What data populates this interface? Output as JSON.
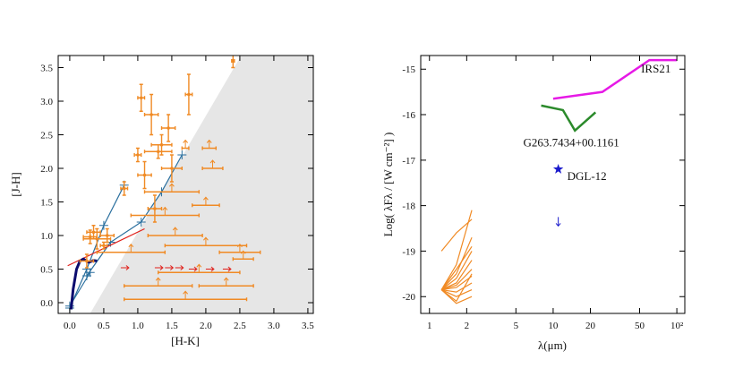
{
  "chart_data": [
    {
      "type": "scatter",
      "xlabel": "[H-K]",
      "ylabel": "[J-H]",
      "xlim": [
        -0.17,
        3.58
      ],
      "ylim": [
        -0.16,
        3.68
      ],
      "xticks": [
        {
          "value": 0,
          "label": "0.0"
        },
        0.5,
        {
          "value": 1,
          "label": "1.0"
        },
        1.5,
        {
          "value": 2,
          "label": "2.0"
        },
        2.5,
        {
          "value": 3,
          "label": "3.0"
        },
        3.5
      ],
      "yticks": [
        {
          "value": 0,
          "label": "0.0"
        },
        0.5,
        {
          "value": 1,
          "label": "1.0"
        },
        1.5,
        {
          "value": 2,
          "label": "2.0"
        },
        2.5,
        {
          "value": 3,
          "label": "3.0"
        },
        3.5
      ],
      "series": [
        {
          "type": "region",
          "color": "#e6e6e6",
          "x": [
            0.3,
            2.52
          ],
          "values": [
            -0.16,
            3.68
          ]
        },
        {
          "type": "line",
          "marker": "plus",
          "color": "#2a6f9e",
          "x": [
            0.0,
            0.25,
            0.5,
            0.8
          ],
          "values": [
            -0.08,
            0.5,
            1.15,
            1.75
          ]
        },
        {
          "type": "line",
          "marker": "plus",
          "color": "#2a6f9e",
          "x": [
            0.25,
            0.6,
            1.05,
            1.35,
            1.65
          ],
          "values": [
            0.4,
            0.9,
            1.2,
            1.65,
            2.2
          ]
        },
        {
          "type": "line",
          "marker": "plus",
          "color": "#2a6f9e",
          "x": [
            0.0,
            0.3
          ],
          "values": [
            -0.05,
            0.45
          ]
        },
        {
          "type": "line",
          "color": "#e0201b",
          "x": [
            -0.03,
            1.1
          ],
          "values": [
            0.55,
            1.1
          ]
        },
        {
          "type": "line",
          "width": 3,
          "color": "#0b0b6e",
          "x": [
            0.02,
            0.05,
            0.1,
            0.15,
            0.2,
            0.28,
            0.35,
            0.4
          ],
          "values": [
            -0.1,
            0.2,
            0.5,
            0.62,
            0.65,
            0.6,
            0.63,
            0.62
          ]
        },
        {
          "type": "errorbar",
          "color": "#f08a24",
          "x": [
            2.4,
            1.05,
            1.2,
            1.75,
            1.45,
            1.35,
            1.5,
            1.0,
            1.3,
            0.8,
            0.35,
            0.4,
            0.3,
            0.5,
            0.25,
            0.55,
            1.1,
            1.25
          ],
          "values": [
            3.6,
            3.05,
            2.8,
            3.1,
            2.6,
            2.35,
            2.0,
            2.2,
            2.25,
            1.7,
            1.05,
            0.95,
            0.98,
            0.85,
            0.62,
            1.0,
            1.9,
            1.4
          ],
          "xerr": [
            0.02,
            0.05,
            0.1,
            0.05,
            0.1,
            0.15,
            0.15,
            0.05,
            0.2,
            0.05,
            0.1,
            0.2,
            0.1,
            0.05,
            0.1,
            0.1,
            0.1,
            0.1
          ],
          "yerr": [
            0.1,
            0.2,
            0.3,
            0.3,
            0.2,
            0.15,
            0.2,
            0.1,
            0.1,
            0.1,
            0.1,
            0.15,
            0.1,
            0.05,
            0.1,
            0.1,
            0.2,
            0.2
          ]
        },
        {
          "type": "upper_limit",
          "color": "#f08a24",
          "x": [
            1.7,
            2.05,
            2.1,
            1.5,
            2.0,
            1.4,
            1.55,
            2.0,
            0.9,
            2.5,
            1.9,
            1.3,
            2.3,
            1.7,
            2.55
          ],
          "values": [
            2.3,
            2.3,
            2.0,
            1.65,
            1.45,
            1.3,
            1.0,
            0.85,
            0.75,
            0.75,
            0.45,
            0.25,
            0.25,
            0.05,
            0.65
          ],
          "xerr": [
            0.05,
            0.1,
            0.15,
            0.4,
            0.2,
            0.5,
            0.4,
            0.6,
            0.5,
            0.3,
            0.6,
            0.5,
            0.4,
            0.9,
            0.15
          ]
        },
        {
          "type": "x_lower_limit",
          "color": "#e0201b",
          "x": [
            0.75,
            1.25,
            1.4,
            1.55,
            1.75,
            2.0,
            2.25
          ],
          "values": [
            0.52,
            0.52,
            0.52,
            0.52,
            0.5,
            0.5,
            0.5
          ]
        }
      ]
    },
    {
      "type": "line",
      "xscale": "log",
      "xlabel": "λ(μm)",
      "ylabel": "Log( λFλ / [W cm⁻²] )",
      "xlim": [
        0.85,
        116
      ],
      "ylim": [
        -20.37,
        -14.7
      ],
      "xticks": [
        1,
        2,
        5,
        10,
        20,
        50,
        {
          "value": 100,
          "label": "10²"
        }
      ],
      "yticks": [
        -15,
        -16,
        -17,
        -18,
        -19,
        -20
      ],
      "series": [
        {
          "name": "IRS21",
          "color": "#e619e6",
          "width": 2.5,
          "x": [
            10,
            25,
            60,
            100
          ],
          "values": [
            -15.65,
            -15.5,
            -14.8,
            -14.8
          ]
        },
        {
          "name": "G263.7434+00.1161",
          "color": "#2b8a2b",
          "width": 2.5,
          "x": [
            8,
            12,
            15,
            22
          ],
          "values": [
            -15.8,
            -15.9,
            -16.35,
            -15.95
          ]
        },
        {
          "name": "DGL-12",
          "type": "star",
          "color": "#1a1acc",
          "x": [
            11
          ],
          "values": [
            -17.2
          ]
        },
        {
          "type": "upper_limit",
          "color": "#1a1acc",
          "x": [
            11
          ],
          "values": [
            -18.35
          ]
        },
        {
          "color": "#f08a24",
          "x": [
            1.25,
            1.65,
            2.2
          ],
          "values": [
            -19.85,
            -19.3,
            -18.1
          ]
        },
        {
          "color": "#f08a24",
          "x": [
            1.25,
            1.65,
            2.2
          ],
          "values": [
            -19.85,
            -19.5,
            -18.7
          ]
        },
        {
          "color": "#f08a24",
          "x": [
            1.25,
            1.65,
            2.2
          ],
          "values": [
            -19.85,
            -19.6,
            -19.0
          ]
        },
        {
          "color": "#f08a24",
          "x": [
            1.25,
            1.65,
            2.2
          ],
          "values": [
            -19.85,
            -19.7,
            -19.2
          ]
        },
        {
          "color": "#f08a24",
          "x": [
            1.25,
            1.65,
            2.2
          ],
          "values": [
            -19.85,
            -19.75,
            -19.4
          ]
        },
        {
          "color": "#f08a24",
          "x": [
            1.25,
            1.65,
            2.2
          ],
          "values": [
            -19.85,
            -19.8,
            -19.55
          ]
        },
        {
          "color": "#f08a24",
          "x": [
            1.25,
            1.65,
            2.2
          ],
          "values": [
            -19.85,
            -19.9,
            -19.7
          ]
        },
        {
          "color": "#f08a24",
          "x": [
            1.25,
            1.65,
            2.2
          ],
          "values": [
            -19.85,
            -20.0,
            -19.85
          ]
        },
        {
          "color": "#f08a24",
          "x": [
            1.25,
            1.65,
            2.2
          ],
          "values": [
            -19.85,
            -20.1,
            -19.5
          ]
        },
        {
          "color": "#f08a24",
          "x": [
            1.25,
            1.65,
            2.2
          ],
          "values": [
            -19.85,
            -19.4,
            -18.9
          ]
        },
        {
          "color": "#f08a24",
          "x": [
            1.25,
            1.65,
            2.2
          ],
          "values": [
            -19.0,
            -18.6,
            -18.3
          ]
        },
        {
          "color": "#f08a24",
          "x": [
            1.25,
            1.65,
            2.2
          ],
          "values": [
            -19.85,
            -20.15,
            -20.0
          ]
        }
      ]
    }
  ]
}
